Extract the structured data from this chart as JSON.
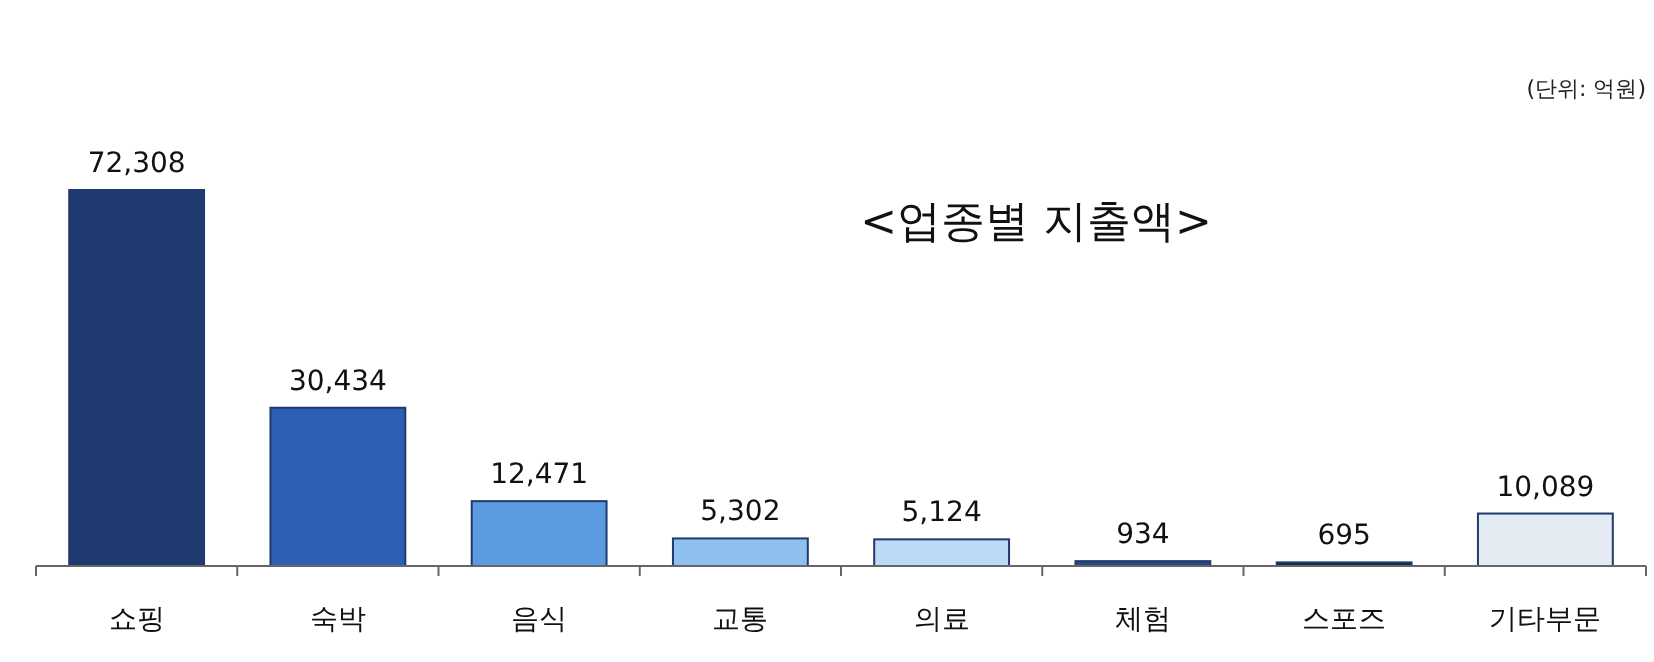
{
  "chart_data": {
    "type": "bar",
    "title": "<업종별 지출액>",
    "annotations": [
      "(단위: 억원)"
    ],
    "categories": [
      "쇼핑",
      "숙박",
      "음식",
      "교통",
      "의료",
      "체험",
      "스포즈",
      "기타부문"
    ],
    "values": [
      72308,
      30434,
      12471,
      5302,
      5124,
      934,
      695,
      10089
    ],
    "colors": [
      "#1f3a6e",
      "#2e5fb5",
      "#5b9be0",
      "#8fbfee",
      "#bcdaf5",
      "#2a4a80",
      "#1a2a40",
      "#e4ebf2"
    ],
    "value_labels": [
      "72,308",
      "30,434",
      "12,471",
      "5,302",
      "5,124",
      "934",
      "695",
      "10,089"
    ]
  }
}
